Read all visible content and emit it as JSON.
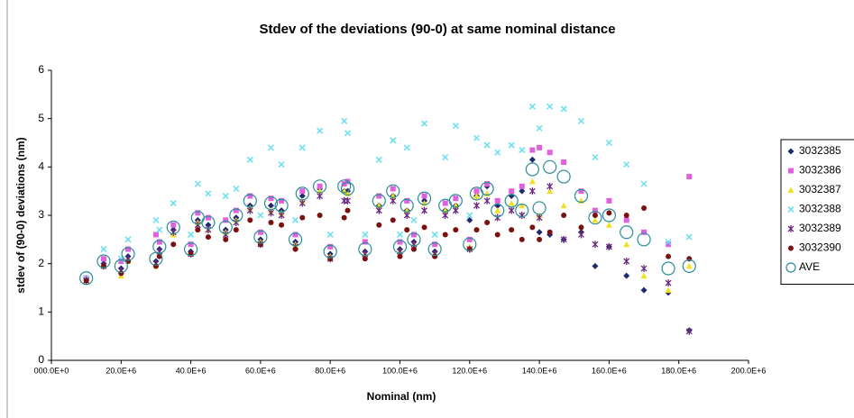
{
  "chart_data": {
    "type": "scatter",
    "title": "Stdev of the deviations (90-0) at same nominal distance",
    "x_label": "Nominal (nm)",
    "y_label": "stdev of (90-0) deviations (nm)",
    "xlim": [
      0,
      200000000.0
    ],
    "ylim": [
      0,
      6
    ],
    "xticks": [
      {
        "value": 0,
        "label": "000.0E+0"
      },
      {
        "value": 20000000.0,
        "label": "20.0E+6"
      },
      {
        "value": 40000000.0,
        "label": "40.0E+6"
      },
      {
        "value": 60000000.0,
        "label": "60.0E+6"
      },
      {
        "value": 80000000.0,
        "label": "80.0E+6"
      },
      {
        "value": 100000000.0,
        "label": "100.0E+6"
      },
      {
        "value": 120000000.0,
        "label": "120.0E+6"
      },
      {
        "value": 140000000.0,
        "label": "140.0E+6"
      },
      {
        "value": 160000000.0,
        "label": "160.0E+6"
      },
      {
        "value": 180000000.0,
        "label": "180.0E+6"
      },
      {
        "value": 200000000.0,
        "label": "200.0E+6"
      }
    ],
    "yticks": [
      0,
      1,
      2,
      3,
      4,
      5,
      6
    ],
    "grid": false,
    "legend": "right",
    "x": [
      10000000.0,
      15000000.0,
      20000000.0,
      22000000.0,
      30000000.0,
      31000000.0,
      35000000.0,
      40000000.0,
      42000000.0,
      45000000.0,
      50000000.0,
      53000000.0,
      57000000.0,
      60000000.0,
      63000000.0,
      66000000.0,
      70000000.0,
      72000000.0,
      77000000.0,
      80000000.0,
      84000000.0,
      85000000.0,
      90000000.0,
      94000000.0,
      98000000.0,
      100000000.0,
      102000000.0,
      104000000.0,
      107000000.0,
      110000000.0,
      113000000.0,
      116000000.0,
      120000000.0,
      122000000.0,
      125000000.0,
      128000000.0,
      132000000.0,
      135000000.0,
      138000000.0,
      140000000.0,
      143000000.0,
      147000000.0,
      152000000.0,
      156000000.0,
      160000000.0,
      165000000.0,
      170000000.0,
      177000000.0,
      183000000.0
    ],
    "series": [
      {
        "name": "3032385",
        "color": "#1f2a6e",
        "marker": "diamond",
        "values": [
          1.7,
          2.0,
          1.9,
          2.15,
          2.05,
          2.3,
          2.7,
          2.25,
          2.9,
          2.8,
          2.7,
          2.95,
          3.2,
          2.5,
          3.2,
          3.1,
          2.45,
          3.4,
          3.55,
          2.2,
          3.5,
          3.5,
          2.25,
          3.2,
          3.4,
          2.3,
          3.1,
          2.45,
          3.3,
          2.25,
          3.1,
          3.2,
          2.9,
          3.4,
          3.6,
          3.2,
          3.4,
          3.5,
          4.15,
          2.65,
          2.6,
          2.5,
          2.65,
          1.95,
          2.35,
          1.75,
          1.45,
          1.4,
          0.62
        ]
      },
      {
        "name": "3032386",
        "color": "#e060e0",
        "marker": "square",
        "values": [
          1.7,
          2.1,
          2.05,
          2.3,
          2.6,
          2.45,
          2.8,
          2.4,
          3.05,
          2.95,
          2.9,
          3.1,
          3.4,
          2.65,
          3.35,
          3.3,
          2.6,
          3.5,
          3.6,
          2.35,
          3.65,
          3.7,
          2.45,
          3.4,
          3.55,
          2.45,
          3.3,
          2.6,
          3.4,
          2.4,
          3.25,
          3.35,
          2.5,
          3.5,
          3.65,
          3.3,
          3.5,
          3.6,
          4.35,
          4.4,
          4.3,
          4.1,
          3.5,
          3.1,
          3.3,
          2.9,
          2.65,
          2.4,
          3.8
        ]
      },
      {
        "name": "3032387",
        "color": "#f0e020",
        "marker": "triangle",
        "values": [
          1.65,
          1.95,
          1.75,
          2.05,
          1.95,
          2.2,
          2.6,
          2.2,
          2.85,
          2.7,
          2.65,
          2.9,
          3.15,
          2.45,
          3.1,
          3.05,
          2.4,
          3.3,
          3.5,
          2.15,
          3.5,
          3.45,
          2.2,
          3.2,
          3.4,
          2.25,
          3.1,
          2.4,
          3.25,
          2.2,
          3.1,
          3.2,
          2.35,
          3.4,
          3.45,
          3.1,
          3.25,
          3.2,
          3.7,
          3.0,
          3.5,
          3.2,
          3.3,
          2.9,
          2.8,
          2.4,
          1.75,
          1.45,
          1.95
        ]
      },
      {
        "name": "3032388",
        "color": "#66e0f0",
        "marker": "x",
        "values": [
          1.7,
          2.3,
          2.1,
          2.5,
          2.9,
          2.7,
          3.25,
          2.6,
          3.65,
          3.45,
          3.4,
          3.55,
          4.15,
          3.0,
          4.4,
          4.05,
          2.9,
          4.4,
          4.75,
          2.6,
          4.95,
          4.7,
          2.6,
          4.15,
          4.55,
          2.6,
          4.4,
          2.9,
          4.9,
          2.6,
          4.2,
          4.85,
          3.0,
          4.6,
          4.45,
          4.3,
          4.45,
          4.35,
          5.25,
          4.8,
          5.25,
          5.2,
          4.95,
          4.2,
          4.5,
          4.05,
          3.65,
          2.45,
          2.55
        ]
      },
      {
        "name": "3032389",
        "color": "#6a2a80",
        "marker": "asterisk",
        "values": [
          1.65,
          1.95,
          1.85,
          2.1,
          2.0,
          2.25,
          2.65,
          2.2,
          2.8,
          2.7,
          2.6,
          2.85,
          3.1,
          2.4,
          3.05,
          3.0,
          2.35,
          3.25,
          3.4,
          2.1,
          3.3,
          3.3,
          2.2,
          3.1,
          3.3,
          2.25,
          3.0,
          2.4,
          3.1,
          2.2,
          3.0,
          3.1,
          2.3,
          3.2,
          3.3,
          2.95,
          3.1,
          3.0,
          3.5,
          2.95,
          3.6,
          2.5,
          2.6,
          2.4,
          2.35,
          2.05,
          1.9,
          1.6,
          0.6
        ]
      },
      {
        "name": "3032390",
        "color": "#7a1010",
        "marker": "circle",
        "values": [
          1.65,
          1.95,
          1.8,
          2.05,
          1.95,
          2.15,
          2.4,
          2.2,
          2.7,
          2.55,
          2.5,
          2.7,
          2.9,
          2.4,
          2.85,
          2.8,
          2.3,
          2.95,
          3.0,
          2.1,
          2.95,
          3.1,
          2.1,
          2.8,
          2.9,
          2.15,
          2.7,
          2.3,
          2.75,
          2.15,
          2.6,
          2.7,
          2.3,
          2.7,
          2.85,
          2.6,
          2.7,
          2.5,
          2.75,
          2.5,
          2.65,
          3.0,
          2.75,
          3.0,
          3.05,
          3.0,
          3.15,
          2.15,
          2.1
        ]
      },
      {
        "name": "AVE",
        "color": "#2a8c98",
        "marker": "open-circle",
        "values": [
          1.7,
          2.05,
          1.95,
          2.2,
          2.1,
          2.35,
          2.75,
          2.3,
          2.95,
          2.85,
          2.75,
          3.0,
          3.3,
          2.55,
          3.25,
          3.2,
          2.5,
          3.45,
          3.6,
          2.25,
          3.6,
          3.55,
          2.3,
          3.3,
          3.5,
          2.35,
          3.2,
          2.5,
          3.35,
          2.3,
          3.2,
          3.3,
          2.4,
          3.45,
          3.55,
          3.1,
          3.3,
          3.1,
          3.95,
          3.15,
          4.0,
          3.8,
          3.4,
          2.95,
          3.0,
          2.65,
          2.5,
          1.9,
          1.95
        ]
      }
    ]
  }
}
